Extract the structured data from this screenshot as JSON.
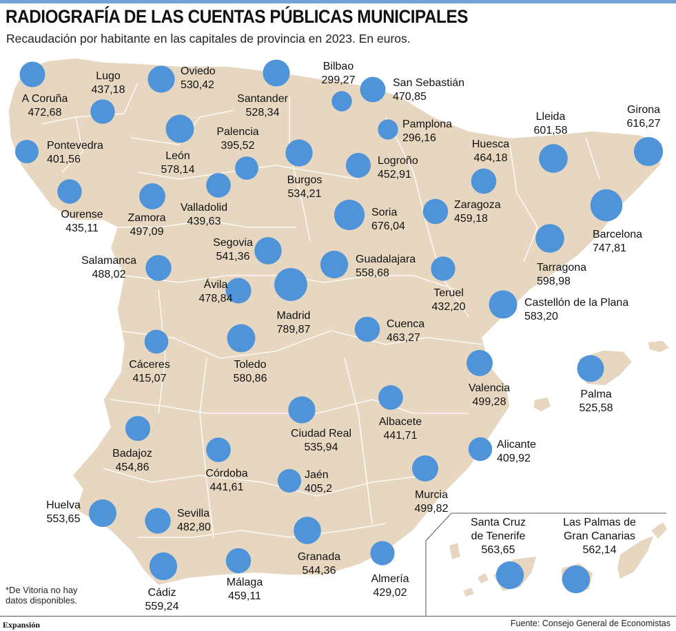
{
  "header": {
    "title": "RADIOGRAFÍA DE LAS CUENTAS PÚBLICAS MUNICIPALES",
    "subtitle": "Recaudación por habitante en las capitales de provincia en 2023. En euros."
  },
  "footnote": [
    "*De Vitoria no hay",
    "datos disponibles."
  ],
  "brand": "Expansión",
  "source": "Fuente: Consejo General de Economistas",
  "colors": {
    "land": "#e7d7c0",
    "border": "#ffffff",
    "bubble": "#4f94d8",
    "accent_bar": "#6fa3d6"
  },
  "cities": [
    {
      "name": "A Coruña",
      "value": "472,68"
    },
    {
      "name": "Lugo",
      "value": "437,18"
    },
    {
      "name": "Oviedo",
      "value": "530,42"
    },
    {
      "name": "Santander",
      "value": "528,34"
    },
    {
      "name": "Bilbao",
      "value": "299,27"
    },
    {
      "name": "San Sebastián",
      "value": "470,85"
    },
    {
      "name": "Pontevedra",
      "value": "401,56"
    },
    {
      "name": "León",
      "value": "578,14"
    },
    {
      "name": "Palencia",
      "value": "395,52"
    },
    {
      "name": "Pamplona",
      "value": "296,16"
    },
    {
      "name": "Lleida",
      "value": "601,58"
    },
    {
      "name": "Girona",
      "value": "616,27"
    },
    {
      "name": "Huesca",
      "value": "464,18"
    },
    {
      "name": "Logroño",
      "value": "452,91"
    },
    {
      "name": "Burgos",
      "value": "534,21"
    },
    {
      "name": "Ourense",
      "value": "435,11"
    },
    {
      "name": "Zamora",
      "value": "497,09"
    },
    {
      "name": "Valladolid",
      "value": "439,63"
    },
    {
      "name": "Soria",
      "value": "676,04"
    },
    {
      "name": "Zaragoza",
      "value": "459,18"
    },
    {
      "name": "Barcelona",
      "value": "747,81"
    },
    {
      "name": "Segovia",
      "value": "541,36"
    },
    {
      "name": "Salamanca",
      "value": "488,02"
    },
    {
      "name": "Guadalajara",
      "value": "558,68"
    },
    {
      "name": "Tarragona",
      "value": "598,98"
    },
    {
      "name": "Ávila",
      "value": "478,84"
    },
    {
      "name": "Teruel",
      "value": "432,20"
    },
    {
      "name": "Madrid",
      "value": "789,87"
    },
    {
      "name": "Castellón de la Plana",
      "value": "583,20"
    },
    {
      "name": "Cuenca",
      "value": "463,27"
    },
    {
      "name": "Cáceres",
      "value": "415,07"
    },
    {
      "name": "Toledo",
      "value": "580,86"
    },
    {
      "name": "Valencia",
      "value": "499,28"
    },
    {
      "name": "Palma",
      "value": "525,58"
    },
    {
      "name": "Albacete",
      "value": "441,71"
    },
    {
      "name": "Ciudad Real",
      "value": "535,94"
    },
    {
      "name": "Badajoz",
      "value": "454,86"
    },
    {
      "name": "Alicante",
      "value": "409,92"
    },
    {
      "name": "Córdoba",
      "value": "441,61"
    },
    {
      "name": "Jaén",
      "value": "405,2"
    },
    {
      "name": "Murcia",
      "value": "499,82"
    },
    {
      "name": "Huelva",
      "value": "553,65"
    },
    {
      "name": "Sevilla",
      "value": "482,80"
    },
    {
      "name": "Granada",
      "value": "544,36"
    },
    {
      "name": "Almería",
      "value": "429,02"
    },
    {
      "name": "Cádiz",
      "value": "559,24"
    },
    {
      "name": "Málaga",
      "value": "459,11"
    },
    {
      "name": "Santa Cruz de Tenerife",
      "lines": [
        "Santa Cruz",
        "de Tenerife"
      ],
      "value": "563,65"
    },
    {
      "name": "Las Palmas de Gran Canarias",
      "lines": [
        "Las Palmas de",
        "Gran Canarias"
      ],
      "value": "562,14"
    }
  ]
}
